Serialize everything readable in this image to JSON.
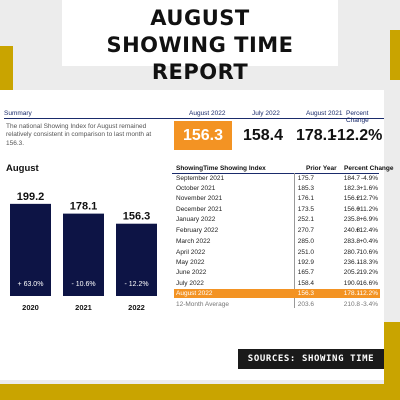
{
  "header": {
    "title_line1": "AUGUST",
    "title_line2": "SHOWING TIME REPORT"
  },
  "summary": {
    "label": "Summary",
    "description": "The national Showing Index for August remained relatively consistent in comparison to last month at 156.3.",
    "columns": [
      "August 2022",
      "July 2022",
      "August 2021",
      "Percent Change"
    ],
    "values": [
      "156.3",
      "158.4",
      "178.1",
      "-12.2%"
    ]
  },
  "chart_data": {
    "type": "bar",
    "title": "August",
    "categories": [
      "2020",
      "2021",
      "2022"
    ],
    "values": [
      199.2,
      178.1,
      156.3
    ],
    "value_labels": [
      "199.2",
      "178.1",
      "156.3"
    ],
    "change_labels": [
      "+ 63.0%",
      "- 10.6%",
      "- 12.2%"
    ],
    "bar_color": "#0d1445",
    "ylim": [
      0,
      220
    ],
    "grid": false,
    "legend": "none"
  },
  "table": {
    "headers": [
      "ShowingTime Showing Index",
      "Prior Year",
      "Percent Change"
    ],
    "rows": [
      {
        "month": "September 2021",
        "index": "175.7",
        "prior": "184.7",
        "change": "-4.9%"
      },
      {
        "month": "October 2021",
        "index": "185.3",
        "prior": "182.3",
        "change": "+1.6%"
      },
      {
        "month": "November 2021",
        "index": "176.1",
        "prior": "156.2",
        "change": "+12.7%"
      },
      {
        "month": "December 2021",
        "index": "173.5",
        "prior": "156.0",
        "change": "+11.2%"
      },
      {
        "month": "January 2022",
        "index": "252.1",
        "prior": "235.8",
        "change": "+6.9%"
      },
      {
        "month": "February 2022",
        "index": "270.7",
        "prior": "240.8",
        "change": "+12.4%"
      },
      {
        "month": "March 2022",
        "index": "285.0",
        "prior": "283.8",
        "change": "+0.4%"
      },
      {
        "month": "April 2022",
        "index": "251.0",
        "prior": "280.7",
        "change": "-10.6%"
      },
      {
        "month": "May 2022",
        "index": "192.9",
        "prior": "236.1",
        "change": "-18.3%"
      },
      {
        "month": "June 2022",
        "index": "165.7",
        "prior": "205.2",
        "change": "-19.2%"
      },
      {
        "month": "July 2022",
        "index": "158.4",
        "prior": "190.0",
        "change": "-16.6%"
      },
      {
        "month": "August 2022",
        "index": "156.3",
        "prior": "178.1",
        "change": "-12.2%"
      }
    ],
    "average": {
      "month": "12-Month Average",
      "index": "203.6",
      "prior": "210.8",
      "change": "-3.4%"
    }
  },
  "footer": {
    "sources": "SOURCES: SHOWING TIME"
  },
  "colors": {
    "accent": "#c9a400",
    "highlight": "#f39323",
    "bar": "#0d1445",
    "rule": "#1a2b6b"
  }
}
